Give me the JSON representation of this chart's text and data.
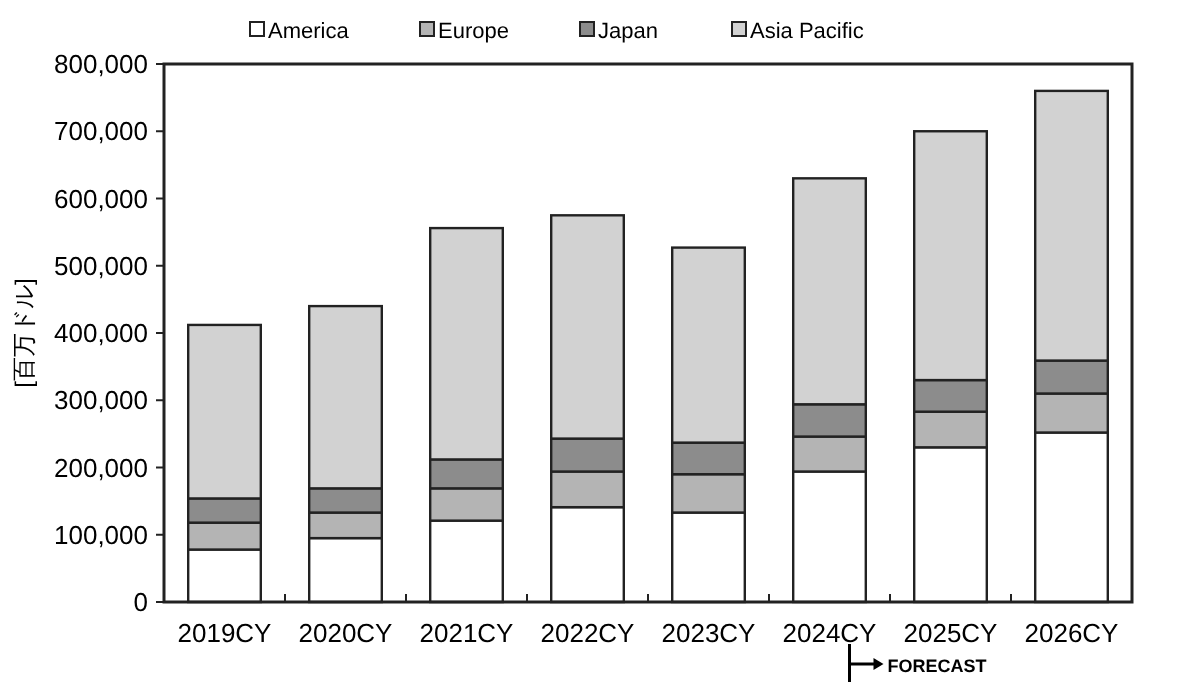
{
  "chart_data": {
    "type": "bar",
    "stacked": true,
    "ylabel": "[百万ドル]",
    "legend": "top",
    "grid": false,
    "categories": [
      "2019CY",
      "2020CY",
      "2021CY",
      "2022CY",
      "2023CY",
      "2024CY",
      "2025CY",
      "2026CY"
    ],
    "series": [
      {
        "name": "America",
        "color": "#ffffff",
        "values": [
          78000,
          95000,
          121000,
          141000,
          133000,
          194000,
          230000,
          252000
        ]
      },
      {
        "name": "Europe",
        "color": "#b4b4b4",
        "values": [
          40000,
          38000,
          48000,
          53000,
          57000,
          52000,
          53000,
          58000
        ]
      },
      {
        "name": "Japan",
        "color": "#8c8c8c",
        "values": [
          36000,
          36000,
          43000,
          49000,
          47000,
          48000,
          47000,
          49000
        ]
      },
      {
        "name": "Asia Pacific",
        "color": "#d2d2d2",
        "values": [
          258000,
          271000,
          344000,
          332000,
          290000,
          336000,
          370000,
          401000
        ]
      }
    ],
    "ylim": [
      0,
      800000
    ],
    "yticks": [
      0,
      {
        "value": 100000,
        "label": "100,000"
      },
      {
        "value": 200000,
        "label": "200,000"
      },
      {
        "value": 300000,
        "label": "300,000"
      },
      {
        "value": 400000,
        "label": "400,000"
      },
      {
        "value": 500000,
        "label": "500,000"
      },
      {
        "value": 600000,
        "label": "600,000"
      },
      {
        "value": 700000,
        "label": "700,000"
      },
      {
        "value": 800000,
        "label": "800,000"
      }
    ],
    "annotations": [
      "FORECAST"
    ]
  }
}
